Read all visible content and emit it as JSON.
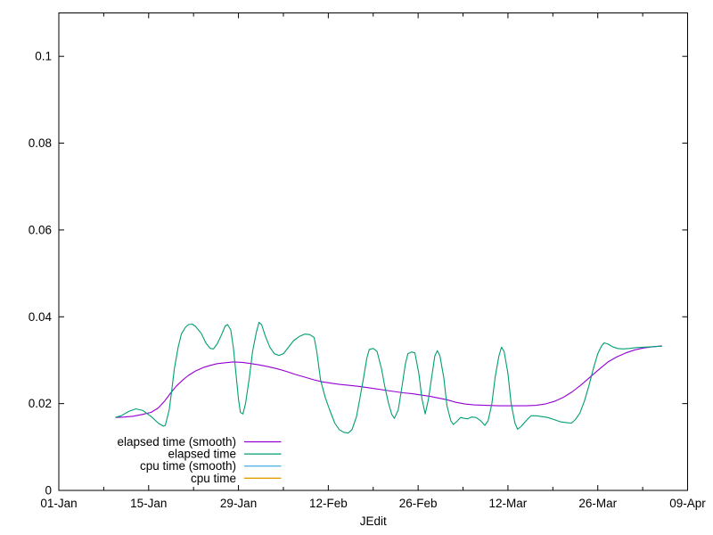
{
  "window": {
    "background": "#ffffff"
  },
  "chart_data": {
    "type": "line",
    "title": "",
    "xlabel": "JEdit",
    "ylabel": "",
    "grid": false,
    "legend_position": "inside bottom-left",
    "axis_color": "#000000",
    "text_color": "#000000",
    "x_axis": {
      "range_days": [
        0,
        98
      ],
      "major_ticks": [
        {
          "day": 0,
          "label": "01-Jan"
        },
        {
          "day": 14,
          "label": "15-Jan"
        },
        {
          "day": 28,
          "label": "29-Jan"
        },
        {
          "day": 42,
          "label": "12-Feb"
        },
        {
          "day": 56,
          "label": "26-Feb"
        },
        {
          "day": 70,
          "label": "12-Mar"
        },
        {
          "day": 84,
          "label": "26-Mar"
        },
        {
          "day": 98,
          "label": "09-Apr"
        }
      ],
      "minor_tick_days": [
        7,
        21,
        35,
        49,
        63,
        77,
        91
      ]
    },
    "y_axis": {
      "range": [
        0,
        0.11
      ],
      "major_ticks": [
        {
          "value": 0,
          "label": "0"
        },
        {
          "value": 0.02,
          "label": "0.02"
        },
        {
          "value": 0.04,
          "label": "0.04"
        },
        {
          "value": 0.06,
          "label": "0.06"
        },
        {
          "value": 0.08,
          "label": "0.08"
        },
        {
          "value": 0.1,
          "label": "0.1"
        }
      ]
    },
    "series": [
      {
        "name": "elapsed time (smooth)",
        "color": "#9400d3",
        "points": [
          [
            8.8,
            0.0168
          ],
          [
            10.2,
            0.0169
          ],
          [
            11.6,
            0.0171
          ],
          [
            13.0,
            0.0175
          ],
          [
            14.4,
            0.018
          ],
          [
            15.5,
            0.019
          ],
          [
            16.5,
            0.0206
          ],
          [
            17.4,
            0.0224
          ],
          [
            18.3,
            0.024
          ],
          [
            19.3,
            0.0254
          ],
          [
            20.2,
            0.0265
          ],
          [
            21.3,
            0.0275
          ],
          [
            22.5,
            0.0283
          ],
          [
            23.6,
            0.0288
          ],
          [
            24.7,
            0.0292
          ],
          [
            25.8,
            0.0294
          ],
          [
            27.2,
            0.0296
          ],
          [
            28.6,
            0.0295
          ],
          [
            30.0,
            0.0292
          ],
          [
            31.3,
            0.0289
          ],
          [
            32.7,
            0.0285
          ],
          [
            34.1,
            0.028
          ],
          [
            35.5,
            0.0274
          ],
          [
            36.9,
            0.0267
          ],
          [
            38.3,
            0.0261
          ],
          [
            39.7,
            0.0255
          ],
          [
            41.1,
            0.025
          ],
          [
            42.5,
            0.0247
          ],
          [
            43.9,
            0.0244
          ],
          [
            45.3,
            0.0242
          ],
          [
            46.6,
            0.024
          ],
          [
            48.0,
            0.0237
          ],
          [
            49.4,
            0.0234
          ],
          [
            50.8,
            0.0231
          ],
          [
            52.2,
            0.0228
          ],
          [
            53.6,
            0.0225
          ],
          [
            55.0,
            0.0223
          ],
          [
            56.4,
            0.022
          ],
          [
            57.8,
            0.0217
          ],
          [
            59.1,
            0.0213
          ],
          [
            60.5,
            0.0209
          ],
          [
            61.9,
            0.0203
          ],
          [
            63.3,
            0.0199
          ],
          [
            64.7,
            0.0197
          ],
          [
            66.5,
            0.0196
          ],
          [
            68.6,
            0.0195
          ],
          [
            70.7,
            0.0195
          ],
          [
            72.8,
            0.0195
          ],
          [
            74.4,
            0.0196
          ],
          [
            75.8,
            0.0199
          ],
          [
            77.2,
            0.0205
          ],
          [
            78.6,
            0.0214
          ],
          [
            80.0,
            0.0227
          ],
          [
            81.4,
            0.0243
          ],
          [
            82.8,
            0.0261
          ],
          [
            84.2,
            0.0279
          ],
          [
            85.6,
            0.0296
          ],
          [
            87.0,
            0.0308
          ],
          [
            88.4,
            0.0317
          ],
          [
            89.8,
            0.0324
          ],
          [
            91.1,
            0.0328
          ],
          [
            92.5,
            0.0331
          ],
          [
            94.0,
            0.0333
          ]
        ]
      },
      {
        "name": "elapsed time",
        "color": "#009e73",
        "points": [
          [
            8.8,
            0.0168
          ],
          [
            9.7,
            0.0172
          ],
          [
            10.9,
            0.0182
          ],
          [
            12.0,
            0.0188
          ],
          [
            13.1,
            0.0184
          ],
          [
            14.4,
            0.017
          ],
          [
            15.5,
            0.0155
          ],
          [
            16.3,
            0.0148
          ],
          [
            16.6,
            0.015
          ],
          [
            17.2,
            0.0185
          ],
          [
            17.6,
            0.023
          ],
          [
            18.0,
            0.028
          ],
          [
            18.6,
            0.033
          ],
          [
            19.1,
            0.036
          ],
          [
            19.7,
            0.0375
          ],
          [
            20.2,
            0.0382
          ],
          [
            20.8,
            0.0383
          ],
          [
            21.3,
            0.0378
          ],
          [
            22.2,
            0.0362
          ],
          [
            22.9,
            0.034
          ],
          [
            23.6,
            0.0327
          ],
          [
            24.1,
            0.0326
          ],
          [
            24.7,
            0.0338
          ],
          [
            25.4,
            0.036
          ],
          [
            25.9,
            0.0378
          ],
          [
            26.3,
            0.0382
          ],
          [
            26.8,
            0.037
          ],
          [
            27.2,
            0.033
          ],
          [
            27.6,
            0.027
          ],
          [
            28.0,
            0.021
          ],
          [
            28.3,
            0.018
          ],
          [
            28.7,
            0.0176
          ],
          [
            29.1,
            0.02
          ],
          [
            29.7,
            0.026
          ],
          [
            30.2,
            0.032
          ],
          [
            30.8,
            0.0365
          ],
          [
            31.2,
            0.0387
          ],
          [
            31.6,
            0.0382
          ],
          [
            32.2,
            0.0355
          ],
          [
            32.9,
            0.033
          ],
          [
            33.6,
            0.0315
          ],
          [
            34.3,
            0.0311
          ],
          [
            35.0,
            0.0315
          ],
          [
            35.8,
            0.033
          ],
          [
            36.6,
            0.0345
          ],
          [
            37.5,
            0.0355
          ],
          [
            38.3,
            0.036
          ],
          [
            39.1,
            0.0359
          ],
          [
            39.8,
            0.0352
          ],
          [
            40.2,
            0.032
          ],
          [
            40.8,
            0.0254
          ],
          [
            41.5,
            0.0215
          ],
          [
            42.2,
            0.0186
          ],
          [
            43.0,
            0.0155
          ],
          [
            43.7,
            0.014
          ],
          [
            44.4,
            0.0134
          ],
          [
            45.1,
            0.0132
          ],
          [
            45.7,
            0.014
          ],
          [
            46.4,
            0.017
          ],
          [
            46.9,
            0.021
          ],
          [
            47.5,
            0.026
          ],
          [
            48.0,
            0.0305
          ],
          [
            48.4,
            0.0325
          ],
          [
            49.0,
            0.0327
          ],
          [
            49.6,
            0.032
          ],
          [
            50.3,
            0.028
          ],
          [
            50.8,
            0.024
          ],
          [
            51.4,
            0.02
          ],
          [
            51.9,
            0.0175
          ],
          [
            52.3,
            0.0166
          ],
          [
            52.9,
            0.0185
          ],
          [
            53.5,
            0.024
          ],
          [
            54.0,
            0.029
          ],
          [
            54.4,
            0.0315
          ],
          [
            55.0,
            0.0319
          ],
          [
            55.5,
            0.0317
          ],
          [
            56.1,
            0.027
          ],
          [
            56.6,
            0.021
          ],
          [
            57.1,
            0.0176
          ],
          [
            57.6,
            0.021
          ],
          [
            58.2,
            0.027
          ],
          [
            58.6,
            0.031
          ],
          [
            59.0,
            0.0322
          ],
          [
            59.4,
            0.031
          ],
          [
            60.0,
            0.026
          ],
          [
            60.5,
            0.0195
          ],
          [
            61.1,
            0.016
          ],
          [
            61.5,
            0.0152
          ],
          [
            62.1,
            0.016
          ],
          [
            62.6,
            0.0168
          ],
          [
            63.2,
            0.0166
          ],
          [
            63.7,
            0.0165
          ],
          [
            64.3,
            0.0169
          ],
          [
            65.0,
            0.0168
          ],
          [
            65.7,
            0.0161
          ],
          [
            66.4,
            0.015
          ],
          [
            66.9,
            0.016
          ],
          [
            67.5,
            0.02
          ],
          [
            68.0,
            0.026
          ],
          [
            68.6,
            0.031
          ],
          [
            69.0,
            0.033
          ],
          [
            69.4,
            0.032
          ],
          [
            70.0,
            0.027
          ],
          [
            70.5,
            0.02
          ],
          [
            71.1,
            0.0155
          ],
          [
            71.5,
            0.0141
          ],
          [
            72.1,
            0.0148
          ],
          [
            72.8,
            0.016
          ],
          [
            73.6,
            0.0172
          ],
          [
            74.4,
            0.0172
          ],
          [
            75.3,
            0.017
          ],
          [
            76.2,
            0.0168
          ],
          [
            77.2,
            0.0163
          ],
          [
            78.2,
            0.0158
          ],
          [
            79.2,
            0.0156
          ],
          [
            79.9,
            0.0155
          ],
          [
            80.5,
            0.0163
          ],
          [
            81.2,
            0.0178
          ],
          [
            81.9,
            0.0205
          ],
          [
            82.6,
            0.024
          ],
          [
            83.3,
            0.028
          ],
          [
            84.0,
            0.0315
          ],
          [
            84.6,
            0.0333
          ],
          [
            85.0,
            0.034
          ],
          [
            85.6,
            0.0337
          ],
          [
            86.3,
            0.0331
          ],
          [
            87.1,
            0.0327
          ],
          [
            87.9,
            0.0326
          ],
          [
            88.9,
            0.0327
          ],
          [
            90.0,
            0.0329
          ],
          [
            91.1,
            0.033
          ],
          [
            92.4,
            0.0331
          ],
          [
            93.6,
            0.0332
          ],
          [
            94.0,
            0.0332
          ]
        ]
      },
      {
        "name": "cpu time (smooth)",
        "color": "#56b4e9",
        "points": []
      },
      {
        "name": "cpu time",
        "color": "#e69f00",
        "points": []
      }
    ]
  }
}
